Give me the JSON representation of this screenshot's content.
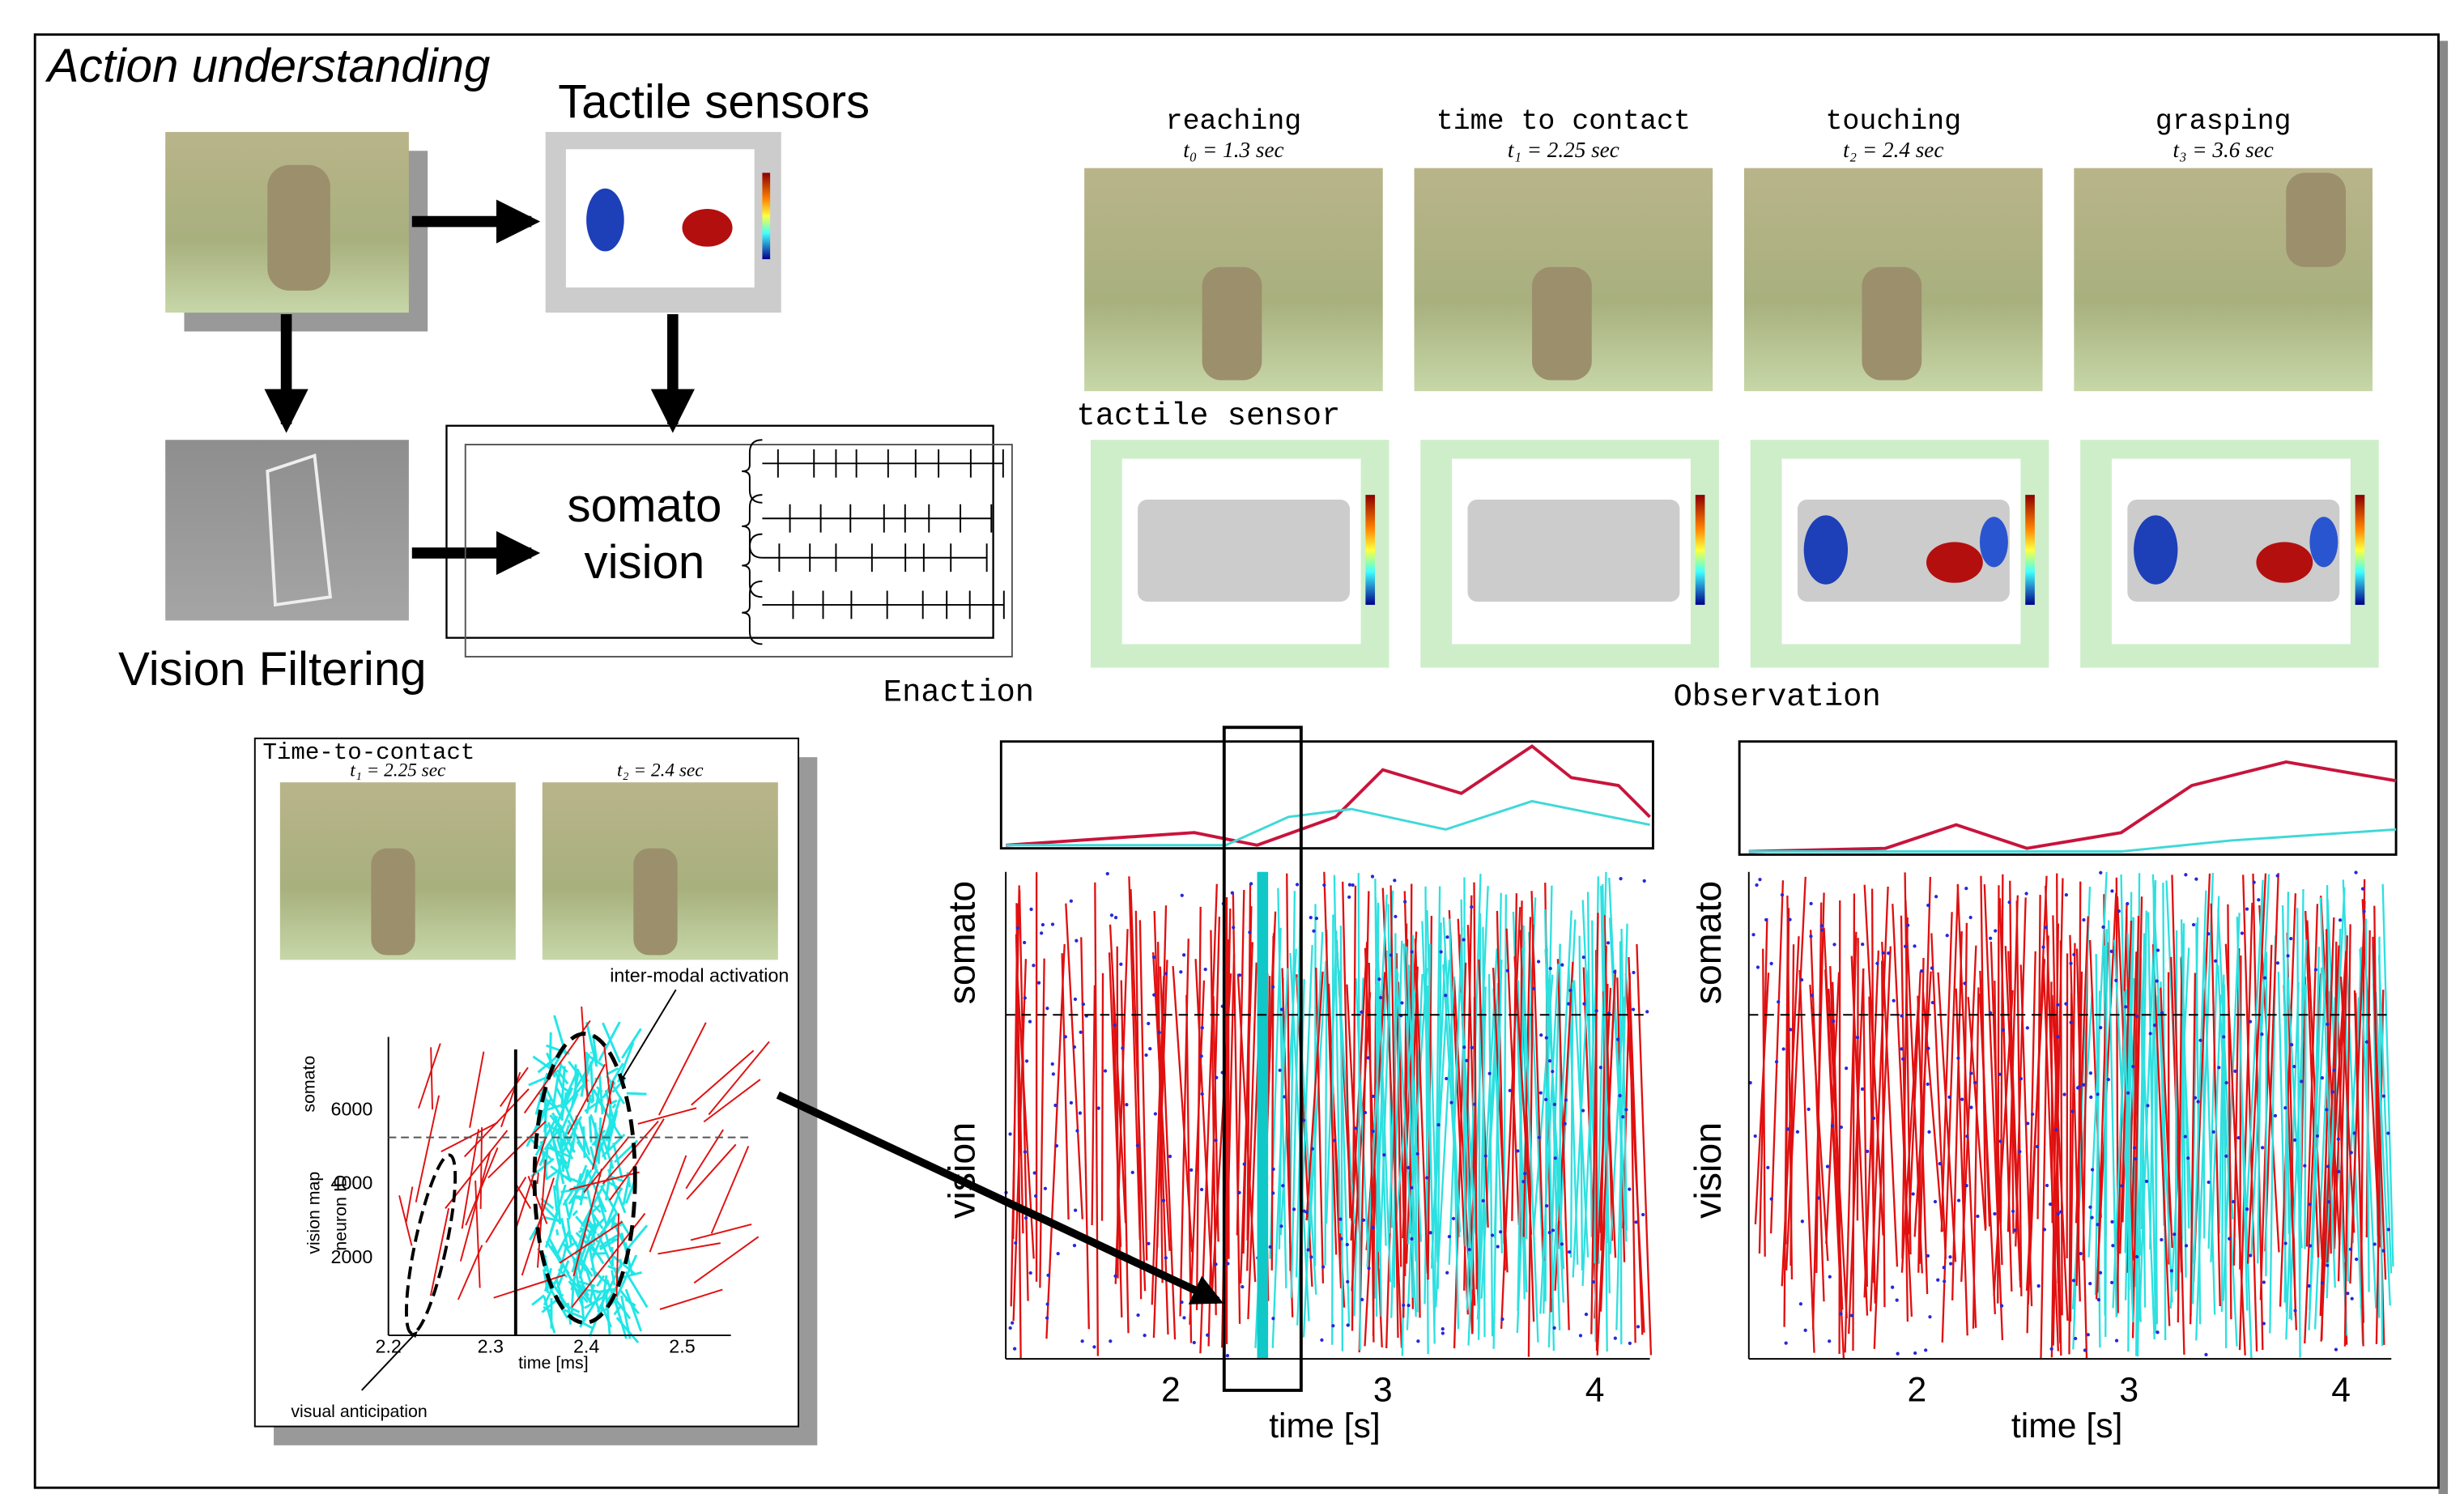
{
  "title": "Action understanding",
  "pipeline": {
    "tactile_sensors": "Tactile sensors",
    "vision_filtering": "Vision Filtering",
    "somato": "somato",
    "vision": "vision"
  },
  "stages": [
    {
      "name": "reaching",
      "time": "t₀ = 1.3 sec"
    },
    {
      "name": "time to contact",
      "time": "t₁ = 2.25 sec"
    },
    {
      "name": "touching",
      "time": "t₂ = 2.4 sec"
    },
    {
      "name": "grasping",
      "time": "t₃ = 3.6 sec"
    }
  ],
  "tactile_label": "tactile sensor",
  "inset": {
    "title": "Time-to-contact",
    "t1": "t₁ = 2.25 sec",
    "t2": "t₂ = 2.4 sec",
    "annotation_top": "inter-modal activation",
    "annotation_bottom": "visual anticipation",
    "y_labels": [
      "somato",
      "vision map",
      "neuron ID"
    ],
    "y_ticks": [
      "6000",
      "4000",
      "2000"
    ],
    "x_ticks": [
      "2.2",
      "2.3",
      "2.4",
      "2.5"
    ],
    "x_label": "time [ms]"
  },
  "panels": [
    {
      "title": "Enaction",
      "y_labels": [
        "somato",
        "vision"
      ],
      "x_ticks": [
        "2",
        "3",
        "4"
      ],
      "x_label": "time [s]"
    },
    {
      "title": "Observation",
      "y_labels": [
        "somato",
        "vision"
      ],
      "x_ticks": [
        "2",
        "3",
        "4"
      ],
      "x_label": "time [s]"
    }
  ]
}
